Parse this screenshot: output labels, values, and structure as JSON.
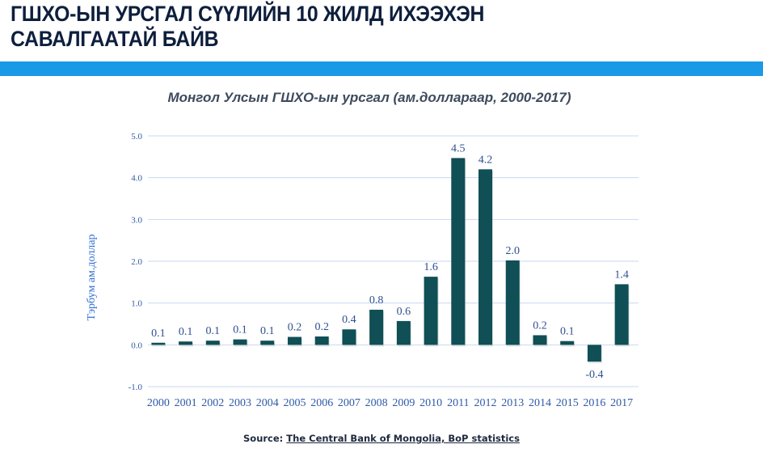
{
  "slide": {
    "headline_line1": "ГШХО-ЫН УРСГАЛ СҮҮЛИЙН 10 ЖИЛД ИХЭЭХЭН",
    "headline_line2": "САВАЛГААТАЙ БАЙВ",
    "banner_color": "#1a9ae6",
    "source_label": "Source:",
    "source_link": "The Central Bank of Mongolia, BoP statistics"
  },
  "chart_data": {
    "type": "bar",
    "title": "Монгол Улсын ГШХО-ын урсгал (ам.доллараар, 2000-2017)",
    "xlabel": "",
    "ylabel": "Тэрбум ам.доллар",
    "ylim": [
      -1.0,
      5.0
    ],
    "yticks": [
      "5.0",
      "4.0",
      "3.0",
      "2.0",
      "1.0",
      "0.0",
      "-1.0"
    ],
    "ytick_values": [
      5,
      4,
      3,
      2,
      1,
      0,
      -1
    ],
    "grid": true,
    "legend": "none",
    "bar_color": "#0f4f55",
    "categories": [
      "2000",
      "2001",
      "2002",
      "2003",
      "2004",
      "2005",
      "2006",
      "2007",
      "2008",
      "2009",
      "2010",
      "2011",
      "2012",
      "2013",
      "2014",
      "2015",
      "2016",
      "2017"
    ],
    "values": [
      0.05,
      0.08,
      0.1,
      0.13,
      0.1,
      0.19,
      0.2,
      0.37,
      0.84,
      0.57,
      1.63,
      4.47,
      4.2,
      2.02,
      0.23,
      0.09,
      -0.4,
      1.45
    ],
    "data_labels": [
      "0.1",
      "0.1",
      "0.1",
      "0.1",
      "0.1",
      "0.2",
      "0.2",
      "0.4",
      "0.8",
      "0.6",
      "1.6",
      "4.5",
      "4.2",
      "2.0",
      "0.2",
      "0.1",
      "-0.4",
      "1.4"
    ]
  }
}
